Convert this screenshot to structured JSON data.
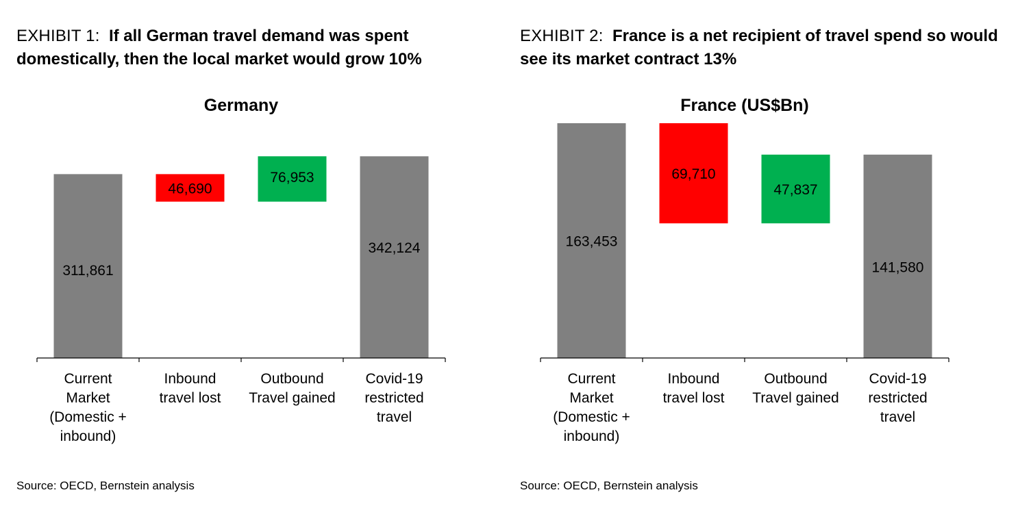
{
  "exhibits": [
    {
      "label": "EXHIBIT 1:",
      "text": "If all German travel demand was spent domestically, then the local market would grow 10%",
      "source": "Source: OECD, Bernstein analysis"
    },
    {
      "label": "EXHIBIT 2:",
      "text": "France is a net recipient of travel spend so would see its market contract 13%",
      "source": "Source: OECD, Bernstein analysis"
    }
  ],
  "chart_data": [
    {
      "type": "bar",
      "subtype": "waterfall",
      "title": "Germany",
      "categories": [
        "Current\nMarket\n(Domestic +\ninbound)",
        "Inbound\ntravel lost",
        "Outbound\nTravel gained",
        "Covid-19\nrestricted\ntravel"
      ],
      "values": [
        311861,
        -46690,
        76953,
        342124
      ],
      "value_labels": [
        "311,861",
        "46,690",
        "76,953",
        "342,124"
      ],
      "bar_roles": [
        "total",
        "decrease",
        "increase",
        "total"
      ],
      "colors": {
        "total": "#808080",
        "decrease": "#ff0000",
        "increase": "#00b050"
      },
      "ylim": [
        0,
        375000
      ],
      "grid": false,
      "legend": "none"
    },
    {
      "type": "bar",
      "subtype": "waterfall",
      "title": "France (US$Bn)",
      "categories": [
        "Current\nMarket\n(Domestic +\ninbound)",
        "Inbound\ntravel lost",
        "Outbound\nTravel gained",
        "Covid-19\nrestricted\ntravel"
      ],
      "values": [
        163453,
        -69710,
        47837,
        141580
      ],
      "value_labels": [
        "163,453",
        "69,710",
        "47,837",
        "141,580"
      ],
      "bar_roles": [
        "total",
        "decrease",
        "increase",
        "total"
      ],
      "colors": {
        "total": "#808080",
        "decrease": "#ff0000",
        "increase": "#00b050"
      },
      "ylim": [
        0,
        163453
      ],
      "grid": false,
      "legend": "none"
    }
  ]
}
